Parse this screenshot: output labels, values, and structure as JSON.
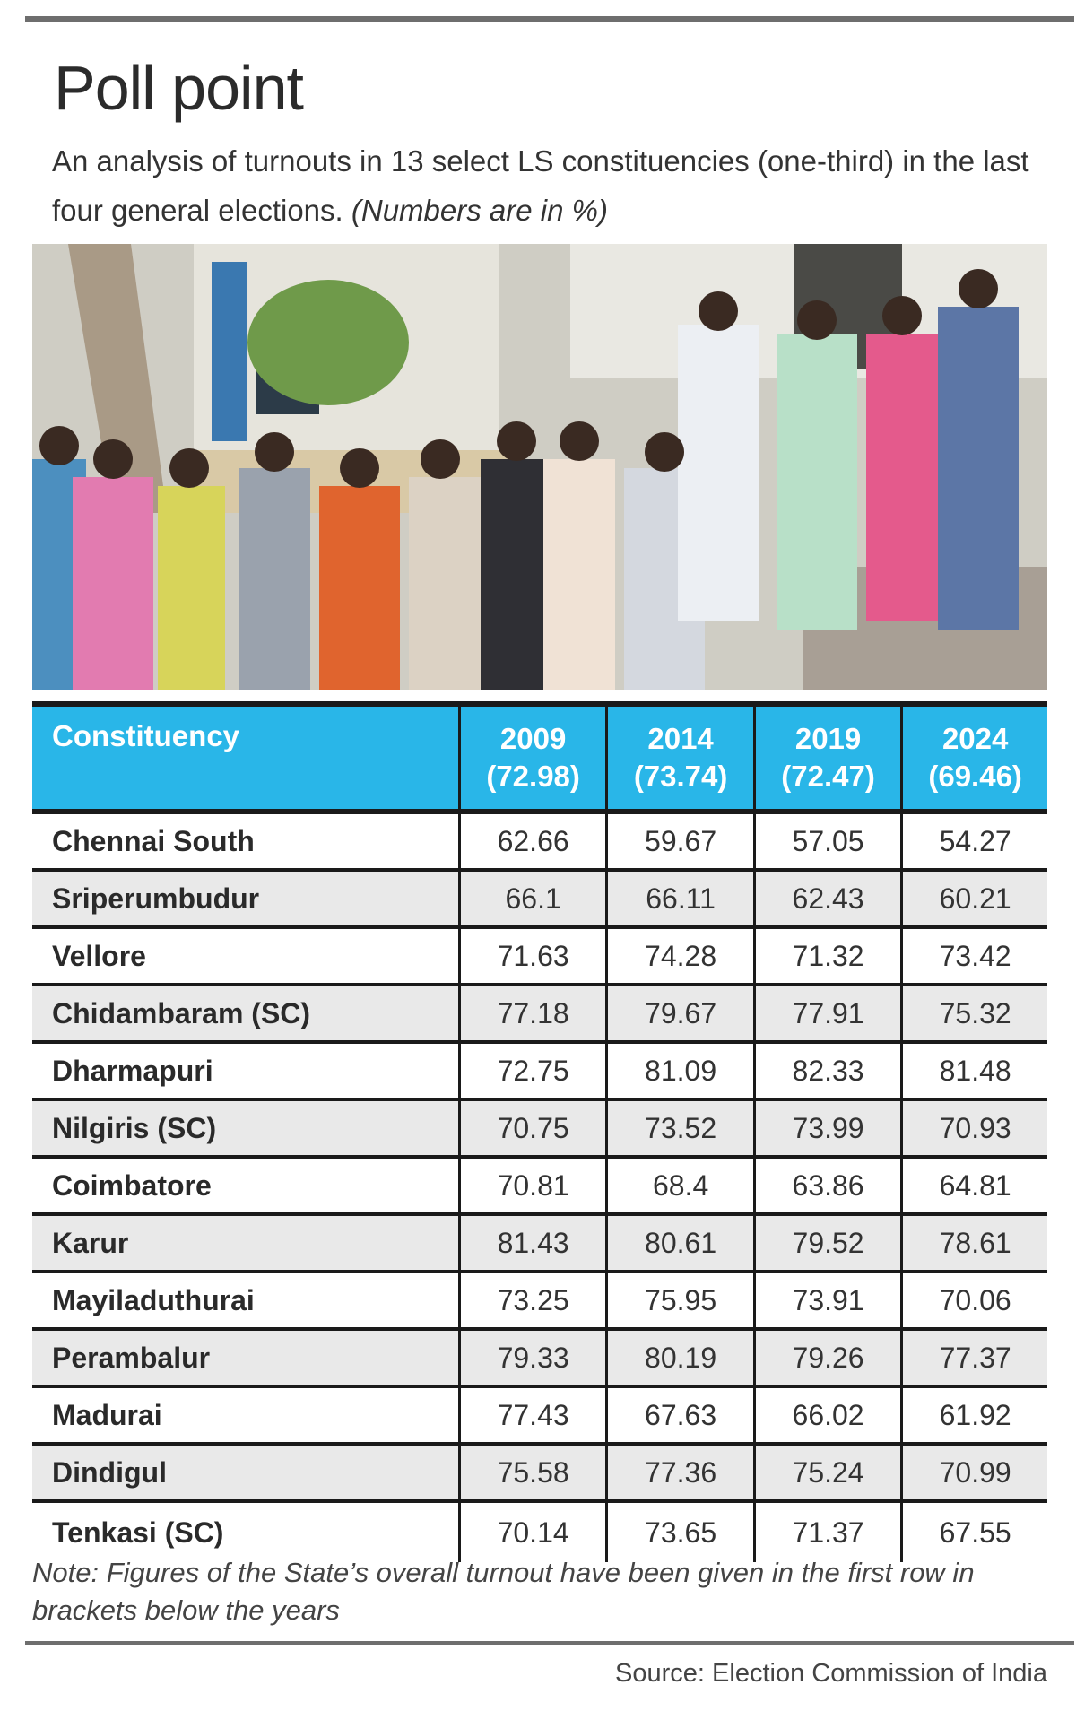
{
  "header": {
    "title": "Poll point",
    "subtitle": "An analysis of turnouts in 13 select LS constituencies (one-third) in the last four general elections.",
    "subtitle_units": "(Numbers are in %)"
  },
  "photo": {
    "description_icon": "photo-polling-queue"
  },
  "colors": {
    "header_bg": "#29b6e8",
    "alt_row": "#e9e9e9",
    "rule": "#6e6e6e"
  },
  "table": {
    "columns": [
      {
        "year": "Constituency",
        "overall": ""
      },
      {
        "year": "2009",
        "overall": "(72.98)"
      },
      {
        "year": "2014",
        "overall": "(73.74)"
      },
      {
        "year": "2019",
        "overall": "(72.47)"
      },
      {
        "year": "2024",
        "overall": "(69.46)"
      }
    ],
    "rows": [
      [
        "Chennai South",
        "62.66",
        "59.67",
        "57.05",
        "54.27"
      ],
      [
        "Sriperumbudur",
        "66.1",
        "66.11",
        "62.43",
        "60.21"
      ],
      [
        "Vellore",
        "71.63",
        "74.28",
        "71.32",
        "73.42"
      ],
      [
        "Chidambaram (SC)",
        "77.18",
        "79.67",
        "77.91",
        "75.32"
      ],
      [
        "Dharmapuri",
        "72.75",
        "81.09",
        "82.33",
        "81.48"
      ],
      [
        "Nilgiris (SC)",
        "70.75",
        "73.52",
        "73.99",
        "70.93"
      ],
      [
        "Coimbatore",
        "70.81",
        "68.4",
        "63.86",
        "64.81"
      ],
      [
        "Karur",
        "81.43",
        "80.61",
        "79.52",
        "78.61"
      ],
      [
        "Mayiladuthurai",
        "73.25",
        "75.95",
        "73.91",
        "70.06"
      ],
      [
        "Perambalur",
        "79.33",
        "80.19",
        "79.26",
        "77.37"
      ],
      [
        "Madurai",
        "77.43",
        "67.63",
        "66.02",
        "61.92"
      ],
      [
        "Dindigul",
        "75.58",
        "77.36",
        "75.24",
        "70.99"
      ],
      [
        "Tenkasi (SC)",
        "70.14",
        "73.65",
        "71.37",
        "67.55"
      ]
    ]
  },
  "footer": {
    "note": "Note: Figures of the State’s overall turnout have been given in the first row in brackets below the years",
    "source": "Source: Election Commission of India"
  }
}
